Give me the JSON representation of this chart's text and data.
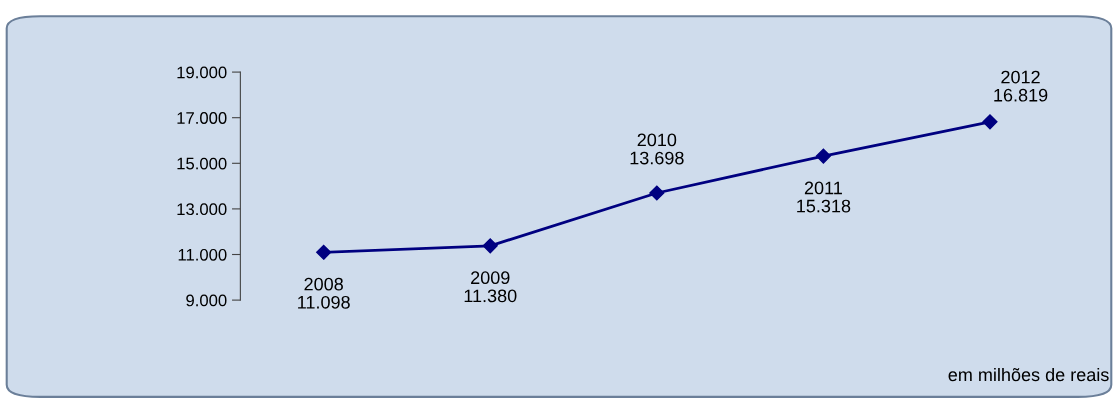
{
  "chart_data": {
    "type": "line",
    "categories": [
      "2008",
      "2009",
      "2010",
      "2011",
      "2012"
    ],
    "series": [
      {
        "color": "#000080",
        "values": [
          11098,
          11380,
          13698,
          15318,
          16819
        ],
        "value_labels": [
          "11.098",
          "11.380",
          "13.698",
          "15.318",
          "16.819"
        ]
      }
    ],
    "ylim": [
      9000,
      19000
    ],
    "yticks": [
      {
        "value": 9000,
        "label": "9.000"
      },
      {
        "value": 11000,
        "label": "11.000"
      },
      {
        "value": 13000,
        "label": "13.000"
      },
      {
        "value": 15000,
        "label": "15.000"
      },
      {
        "value": 17000,
        "label": "17.000"
      },
      {
        "value": 19000,
        "label": "19.000"
      }
    ],
    "tick_labels": "y",
    "marker": "diamond",
    "line_style": "solid",
    "grid": false,
    "legend": false,
    "annotations": [
      "em milhões de reais"
    ]
  }
}
